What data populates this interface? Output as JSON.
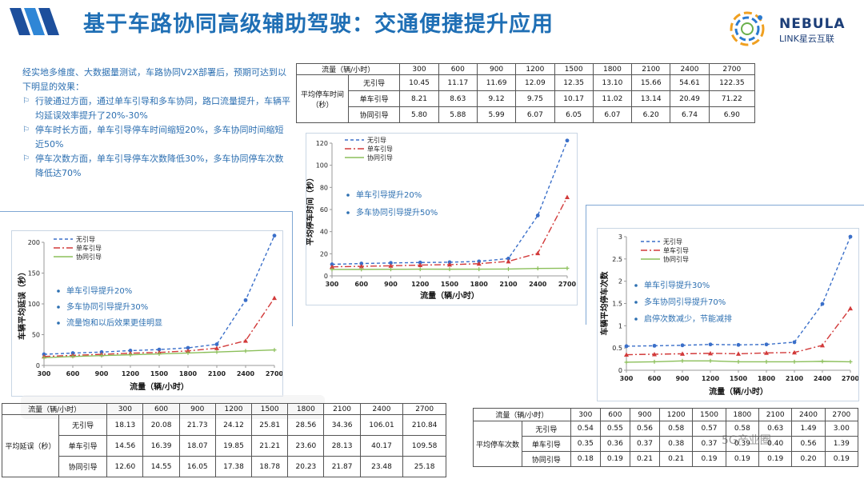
{
  "header": {
    "title": "基于车路协同高级辅助驾驶：交通便捷提升应用",
    "brand_name": "NEBULA",
    "brand_sub": "LINK星云互联"
  },
  "intro": {
    "text": "经实地多维度、大数据量测试，车路协同V2X部署后，预期可达到以下明显的效果：",
    "bullets": [
      "行驶通过方面，通过单车引导和多车协同，路口流量提升，车辆平均延误效率提升了20%-30%",
      "停车时长方面，单车引导停车时间缩短20%，多车协同时间缩短近50%",
      "停车次数方面，单车引导停车次数降低30%，多车协同停车次数降低达70%"
    ]
  },
  "colors": {
    "title": "#1f6fb5",
    "none": "#3a6fc9",
    "single": "#d23a3a",
    "coop": "#8bbf5a",
    "annotation": "#2c6fb1"
  },
  "tables": {
    "stop_time": {
      "header_label": "流量（辆/小时）",
      "row_group_label": "平均停车时间（秒）",
      "columns": [
        "300",
        "600",
        "900",
        "1200",
        "1500",
        "1800",
        "2100",
        "2400",
        "2700"
      ],
      "rows": [
        {
          "label": "无引导",
          "values": [
            "10.45",
            "11.17",
            "11.69",
            "12.09",
            "12.35",
            "13.10",
            "15.66",
            "54.61",
            "122.35"
          ]
        },
        {
          "label": "单车引导",
          "values": [
            "8.21",
            "8.63",
            "9.12",
            "9.75",
            "10.17",
            "11.02",
            "13.14",
            "20.49",
            "71.22"
          ]
        },
        {
          "label": "协同引导",
          "values": [
            "5.80",
            "5.88",
            "5.99",
            "6.07",
            "6.05",
            "6.07",
            "6.20",
            "6.74",
            "6.90"
          ]
        }
      ]
    },
    "delay": {
      "header_label": "流量（辆/小时）",
      "row_group_label": "平均延误（秒）",
      "columns": [
        "300",
        "600",
        "900",
        "1200",
        "1500",
        "1800",
        "2100",
        "2400",
        "2700"
      ],
      "rows": [
        {
          "label": "无引导",
          "values": [
            "18.13",
            "20.08",
            "21.73",
            "24.12",
            "25.81",
            "28.56",
            "34.36",
            "106.01",
            "210.84"
          ]
        },
        {
          "label": "单车引导",
          "values": [
            "14.56",
            "16.39",
            "18.07",
            "19.85",
            "21.21",
            "23.60",
            "28.13",
            "40.17",
            "109.58"
          ]
        },
        {
          "label": "协同引导",
          "values": [
            "12.60",
            "14.55",
            "16.05",
            "17.38",
            "18.78",
            "20.23",
            "21.87",
            "23.48",
            "25.18"
          ]
        }
      ]
    },
    "stops": {
      "header_label": "流量（辆/小时）",
      "row_group_label": "平均停车次数",
      "columns": [
        "300",
        "600",
        "900",
        "1200",
        "1500",
        "1800",
        "2100",
        "2400",
        "2700"
      ],
      "rows": [
        {
          "label": "无引导",
          "values": [
            "0.54",
            "0.55",
            "0.56",
            "0.58",
            "0.57",
            "0.58",
            "0.63",
            "1.49",
            "3.00"
          ]
        },
        {
          "label": "单车引导",
          "values": [
            "0.35",
            "0.36",
            "0.37",
            "0.38",
            "0.37",
            "0.39",
            "0.40",
            "0.56",
            "1.39"
          ]
        },
        {
          "label": "协同引导",
          "values": [
            "0.18",
            "0.19",
            "0.21",
            "0.21",
            "0.19",
            "0.19",
            "0.19",
            "0.20",
            "0.19"
          ]
        }
      ]
    }
  },
  "chart_data": [
    {
      "id": "delay",
      "type": "line",
      "xlabel": "流量（辆/小时）",
      "ylabel": "车辆平均延误（秒）",
      "x": [
        300,
        600,
        900,
        1200,
        1500,
        1800,
        2100,
        2400,
        2700
      ],
      "xticks": [
        "300",
        "600",
        "900",
        "1200",
        "1500",
        "1800",
        "2100",
        "2400",
        "2700"
      ],
      "ylim": [
        0,
        200
      ],
      "yticks": [
        0,
        50,
        100,
        150,
        200
      ],
      "legend_position": "top-left",
      "series": [
        {
          "name": "无引导",
          "values": [
            18.13,
            20.08,
            21.73,
            24.12,
            25.81,
            28.56,
            34.36,
            106.01,
            210.84
          ]
        },
        {
          "name": "单车引导",
          "values": [
            14.56,
            16.39,
            18.07,
            19.85,
            21.21,
            23.6,
            28.13,
            40.17,
            109.58
          ]
        },
        {
          "name": "协同引导",
          "values": [
            12.6,
            14.55,
            16.05,
            17.38,
            18.78,
            20.23,
            21.87,
            23.48,
            25.18
          ]
        }
      ],
      "annotations": [
        "单车引导提升20%",
        "多车协同引导提升30%",
        "流量饱和以后效果更佳明显"
      ]
    },
    {
      "id": "stoptime",
      "type": "line",
      "xlabel": "流量（辆/小时）",
      "ylabel": "平均停车时间（秒）",
      "x": [
        300,
        600,
        900,
        1200,
        1500,
        1800,
        2100,
        2400,
        2700
      ],
      "xticks": [
        "300",
        "600",
        "900",
        "1200",
        "1500",
        "1800",
        "2100",
        "2400",
        "2700"
      ],
      "ylim": [
        0,
        120
      ],
      "yticks": [
        0,
        20,
        40,
        60,
        80,
        100,
        120
      ],
      "legend_position": "top-left",
      "series": [
        {
          "name": "无引导",
          "values": [
            10.45,
            11.17,
            11.69,
            12.09,
            12.35,
            13.1,
            15.66,
            54.61,
            122.35
          ]
        },
        {
          "name": "单车引导",
          "values": [
            8.21,
            8.63,
            9.12,
            9.75,
            10.17,
            11.02,
            13.14,
            20.49,
            71.22
          ]
        },
        {
          "name": "协同引导",
          "values": [
            5.8,
            5.88,
            5.99,
            6.07,
            6.05,
            6.07,
            6.2,
            6.74,
            6.9
          ]
        }
      ],
      "annotations": [
        "单车引导提升20%",
        "多车协同引导提升50%"
      ]
    },
    {
      "id": "stops",
      "type": "line",
      "xlabel": "流量（辆/小时）",
      "ylabel": "车辆平均停车次数",
      "x": [
        300,
        600,
        900,
        1200,
        1500,
        1800,
        2100,
        2400,
        2700
      ],
      "xticks": [
        "300",
        "600",
        "900",
        "1200",
        "1500",
        "1800",
        "2100",
        "2400",
        "2700"
      ],
      "ylim": [
        0,
        3
      ],
      "yticks": [
        0,
        0.5,
        1,
        1.5,
        2,
        2.5,
        3
      ],
      "legend_position": "top-left",
      "series": [
        {
          "name": "无引导",
          "values": [
            0.54,
            0.55,
            0.56,
            0.58,
            0.57,
            0.58,
            0.63,
            1.49,
            3.0
          ]
        },
        {
          "name": "单车引导",
          "values": [
            0.35,
            0.36,
            0.37,
            0.38,
            0.37,
            0.39,
            0.4,
            0.56,
            1.39
          ]
        },
        {
          "name": "协同引导",
          "values": [
            0.18,
            0.19,
            0.21,
            0.21,
            0.19,
            0.19,
            0.19,
            0.2,
            0.19
          ]
        }
      ],
      "annotations": [
        "单车引导提升30%",
        "多车协同引导提升70%",
        "启停次数减少，节能减排"
      ]
    }
  ],
  "watermark": {
    "right": "5G产业圈"
  }
}
